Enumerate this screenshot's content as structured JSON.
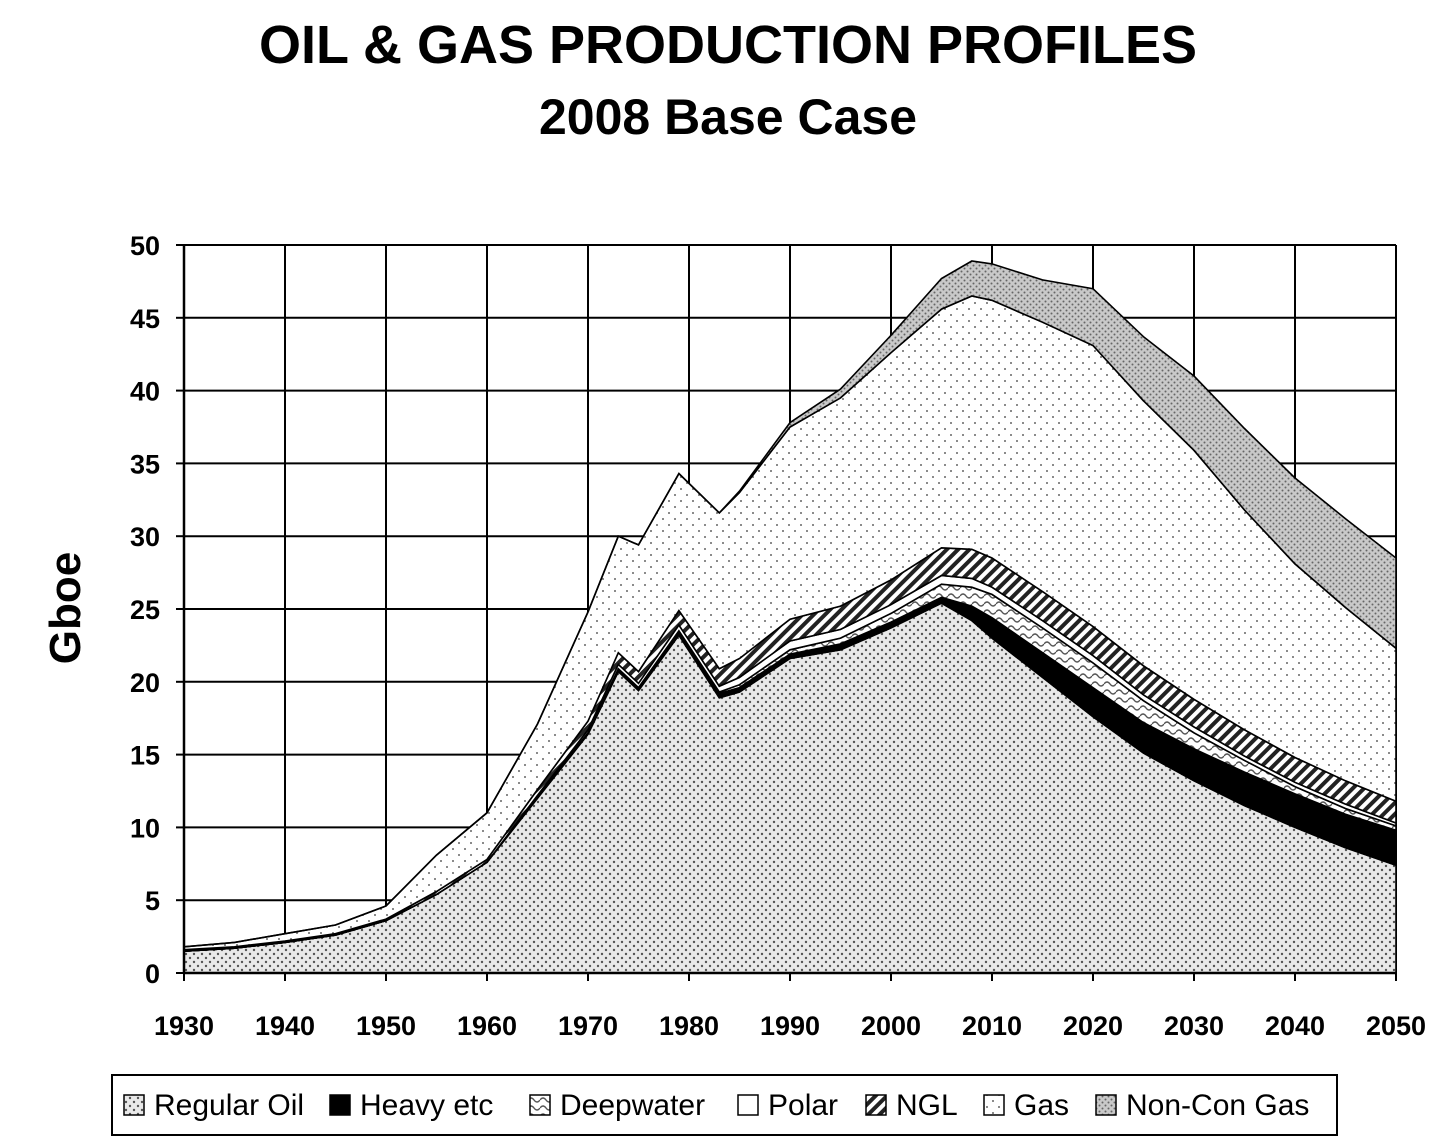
{
  "chart_data": {
    "type": "area",
    "stacked": true,
    "title": "OIL & GAS PRODUCTION PROFILES",
    "subtitle": "2008 Base Case",
    "ylabel": "Gboe",
    "xlabel": "",
    "xlim": [
      1930,
      2050
    ],
    "ylim": [
      0,
      50
    ],
    "x_ticks": [
      1930,
      1940,
      1950,
      1960,
      1970,
      1980,
      1990,
      2000,
      2010,
      2020,
      2030,
      2040,
      2050
    ],
    "y_ticks": [
      0,
      5,
      10,
      15,
      20,
      25,
      30,
      35,
      40,
      45,
      50
    ],
    "grid": true,
    "legend_position": "bottom",
    "x": [
      1930,
      1935,
      1940,
      1945,
      1950,
      1955,
      1960,
      1965,
      1970,
      1973,
      1975,
      1979,
      1983,
      1985,
      1990,
      1995,
      2000,
      2005,
      2008,
      2010,
      2015,
      2020,
      2025,
      2030,
      2035,
      2040,
      2045,
      2050
    ],
    "series": [
      {
        "name": "Regular Oil",
        "pattern": "sparse-dots",
        "values": [
          1.5,
          1.7,
          2.1,
          2.6,
          3.6,
          5.4,
          7.6,
          12.0,
          16.4,
          20.7,
          19.4,
          23.2,
          18.9,
          19.3,
          21.6,
          22.2,
          23.7,
          25.4,
          24.2,
          23.0,
          20.3,
          17.6,
          15.1,
          13.2,
          11.5,
          10.0,
          8.6,
          7.4
        ]
      },
      {
        "name": "Heavy etc",
        "pattern": "solid-black",
        "values": [
          0.0,
          0.0,
          0.0,
          0.0,
          0.0,
          0.0,
          0.0,
          0.1,
          0.1,
          0.2,
          0.2,
          0.2,
          0.3,
          0.3,
          0.3,
          0.4,
          0.4,
          0.4,
          1.0,
          1.4,
          1.7,
          2.0,
          2.1,
          2.2,
          2.3,
          2.3,
          2.3,
          2.4
        ]
      },
      {
        "name": "Deepwater",
        "pattern": "wavy",
        "values": [
          0.0,
          0.0,
          0.0,
          0.0,
          0.0,
          0.0,
          0.0,
          0.0,
          0.0,
          0.0,
          0.0,
          0.1,
          0.1,
          0.2,
          0.3,
          0.4,
          0.6,
          0.9,
          1.3,
          1.6,
          1.7,
          1.7,
          1.5,
          1.1,
          0.8,
          0.5,
          0.4,
          0.3
        ]
      },
      {
        "name": "Polar",
        "pattern": "white",
        "values": [
          0.0,
          0.0,
          0.0,
          0.0,
          0.0,
          0.0,
          0.0,
          0.1,
          0.2,
          0.3,
          0.3,
          0.4,
          0.4,
          0.5,
          0.6,
          0.6,
          0.6,
          0.6,
          0.6,
          0.5,
          0.5,
          0.5,
          0.4,
          0.4,
          0.3,
          0.3,
          0.3,
          0.2
        ]
      },
      {
        "name": "NGL",
        "pattern": "diagonal-stripes",
        "values": [
          0.1,
          0.1,
          0.1,
          0.1,
          0.1,
          0.2,
          0.2,
          0.4,
          0.6,
          0.8,
          0.8,
          1.0,
          1.2,
          1.3,
          1.5,
          1.6,
          1.7,
          1.9,
          2.0,
          2.0,
          2.0,
          2.0,
          2.0,
          1.9,
          1.8,
          1.7,
          1.6,
          1.5
        ]
      },
      {
        "name": "Gas",
        "pattern": "fine-dots",
        "values": [
          0.2,
          0.3,
          0.5,
          0.6,
          0.9,
          2.5,
          3.2,
          4.5,
          7.5,
          8.0,
          8.7,
          9.4,
          10.7,
          11.4,
          13.2,
          14.3,
          15.6,
          16.4,
          17.4,
          17.7,
          18.5,
          19.3,
          18.2,
          17.1,
          15.1,
          13.3,
          11.9,
          10.5
        ]
      },
      {
        "name": "Non-Con Gas",
        "pattern": "gray-dots",
        "values": [
          0.0,
          0.0,
          0.0,
          0.0,
          0.0,
          0.0,
          0.0,
          0.0,
          0.0,
          0.0,
          0.0,
          0.0,
          0.0,
          0.1,
          0.3,
          0.6,
          1.2,
          2.1,
          2.4,
          2.5,
          2.9,
          3.9,
          4.4,
          5.1,
          5.6,
          5.9,
          6.1,
          6.2
        ]
      }
    ]
  }
}
